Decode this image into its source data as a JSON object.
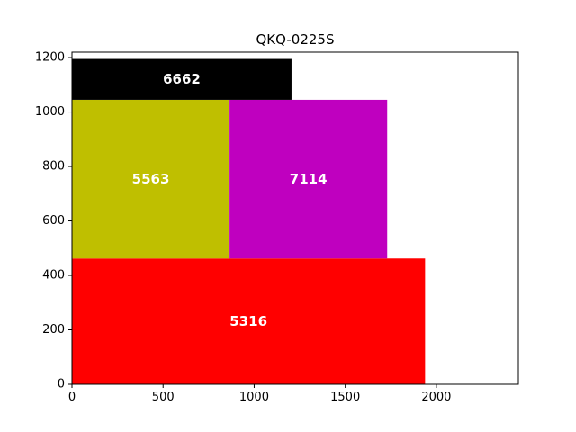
{
  "chart_data": {
    "type": "treemap",
    "title": "QKQ-0225S",
    "xlim": [
      0,
      2450
    ],
    "ylim": [
      0,
      1220
    ],
    "xticks": [
      0,
      500,
      1000,
      1500,
      2000
    ],
    "yticks": [
      0,
      200,
      400,
      600,
      800,
      1000,
      1200
    ],
    "xtick_labels": [
      "0",
      "500",
      "1000",
      "1500",
      "2000"
    ],
    "ytick_labels": [
      "0",
      "200",
      "400",
      "600",
      "800",
      "1000",
      "1200"
    ],
    "rects": [
      {
        "label": "5316",
        "value": 5316,
        "x": 0,
        "y": 0,
        "w": 1938,
        "h": 462,
        "color": "#ff0000"
      },
      {
        "label": "5563",
        "value": 5563,
        "x": 0,
        "y": 462,
        "w": 865,
        "h": 583,
        "color": "#bfbf00"
      },
      {
        "label": "7114",
        "value": 7114,
        "x": 865,
        "y": 462,
        "w": 865,
        "h": 583,
        "color": "#bf00bf"
      },
      {
        "label": "6662",
        "value": 6662,
        "x": 0,
        "y": 1045,
        "w": 1205,
        "h": 150,
        "color": "#000000"
      }
    ]
  }
}
